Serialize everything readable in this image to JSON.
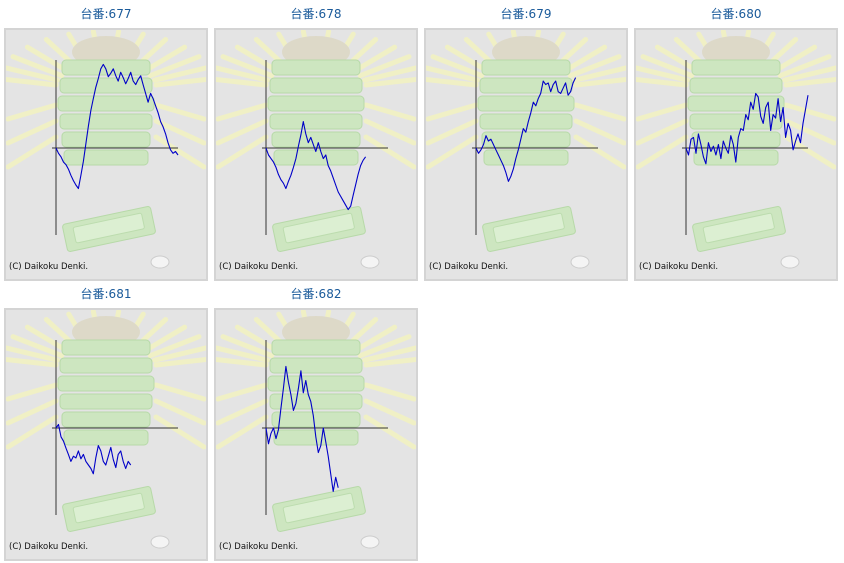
{
  "colors": {
    "line": "#0000c8",
    "axis": "#333333",
    "background": "#e4e4e4",
    "title": "#1a5a9a"
  },
  "copyright": "(C) Daikoku Denki.",
  "machines": [
    {
      "title": "台番:677",
      "chart_data": {
        "type": "line",
        "title": "台番:677",
        "xlim": [
          0,
          100
        ],
        "ylim": [
          -1000,
          1000
        ],
        "y": [
          0,
          -60,
          -100,
          -160,
          -190,
          -240,
          -310,
          -370,
          -420,
          -460,
          -310,
          -150,
          50,
          250,
          430,
          560,
          690,
          790,
          900,
          950,
          900,
          810,
          850,
          900,
          820,
          760,
          860,
          800,
          730,
          790,
          860,
          760,
          720,
          780,
          820,
          720,
          620,
          520,
          620,
          560,
          480,
          400,
          300,
          240,
          160,
          60,
          -20,
          -60,
          -40,
          -80
        ]
      }
    },
    {
      "title": "台番:678",
      "chart_data": {
        "type": "line",
        "title": "台番:678",
        "xlim": [
          0,
          100
        ],
        "ylim": [
          -1000,
          1000
        ],
        "y": [
          0,
          -80,
          -120,
          -160,
          -220,
          -300,
          -360,
          -400,
          -460,
          -380,
          -310,
          -220,
          -120,
          20,
          150,
          300,
          160,
          60,
          120,
          40,
          -40,
          60,
          -40,
          -120,
          -80,
          -200,
          -260,
          -340,
          -420,
          -500,
          -550,
          -600,
          -650,
          -700,
          -660,
          -540,
          -420,
          -300,
          -200,
          -140,
          -100
        ]
      }
    },
    {
      "title": "台番:679",
      "chart_data": {
        "type": "line",
        "title": "台番:679",
        "xlim": [
          0,
          100
        ],
        "ylim": [
          -1000,
          1000
        ],
        "y": [
          0,
          -60,
          -20,
          40,
          140,
          80,
          100,
          40,
          -20,
          -80,
          -140,
          -200,
          -280,
          -380,
          -320,
          -240,
          -120,
          -20,
          100,
          220,
          180,
          300,
          400,
          520,
          480,
          560,
          620,
          760,
          720,
          740,
          640,
          720,
          760,
          640,
          620,
          680,
          740,
          600,
          640,
          740,
          800
        ]
      }
    },
    {
      "title": "台番:680",
      "chart_data": {
        "type": "line",
        "title": "台番:680",
        "xlim": [
          0,
          100
        ],
        "ylim": [
          -1000,
          1000
        ],
        "y": [
          0,
          -80,
          100,
          120,
          -60,
          160,
          40,
          -100,
          -180,
          60,
          -40,
          20,
          -80,
          40,
          -120,
          80,
          0,
          -60,
          140,
          40,
          -160,
          120,
          220,
          200,
          380,
          320,
          520,
          440,
          620,
          580,
          360,
          280,
          460,
          520,
          200,
          380,
          340,
          560,
          300,
          460,
          120,
          280,
          200,
          -20,
          80,
          160,
          60,
          280,
          440,
          600
        ]
      }
    },
    {
      "title": "台番:681",
      "chart_data": {
        "type": "line",
        "title": "台番:681",
        "xlim": [
          0,
          100
        ],
        "ylim": [
          -1000,
          1000
        ],
        "y": [
          0,
          40,
          -100,
          -150,
          -230,
          -300,
          -380,
          -320,
          -340,
          -260,
          -350,
          -300,
          -380,
          -420,
          -460,
          -520,
          -340,
          -200,
          -260,
          -380,
          -420,
          -320,
          -220,
          -360,
          -450,
          -300,
          -260,
          -380,
          -460,
          -380,
          -420
        ]
      }
    },
    {
      "title": "台番:682",
      "chart_data": {
        "type": "line",
        "title": "台番:682",
        "xlim": [
          0,
          100
        ],
        "ylim": [
          -1000,
          1000
        ],
        "y": [
          0,
          -180,
          -60,
          0,
          -120,
          -20,
          220,
          450,
          700,
          520,
          380,
          200,
          280,
          450,
          650,
          400,
          540,
          380,
          300,
          140,
          -100,
          -280,
          -200,
          0,
          -160,
          -320,
          -520,
          -720,
          -560,
          -680
        ]
      }
    }
  ]
}
